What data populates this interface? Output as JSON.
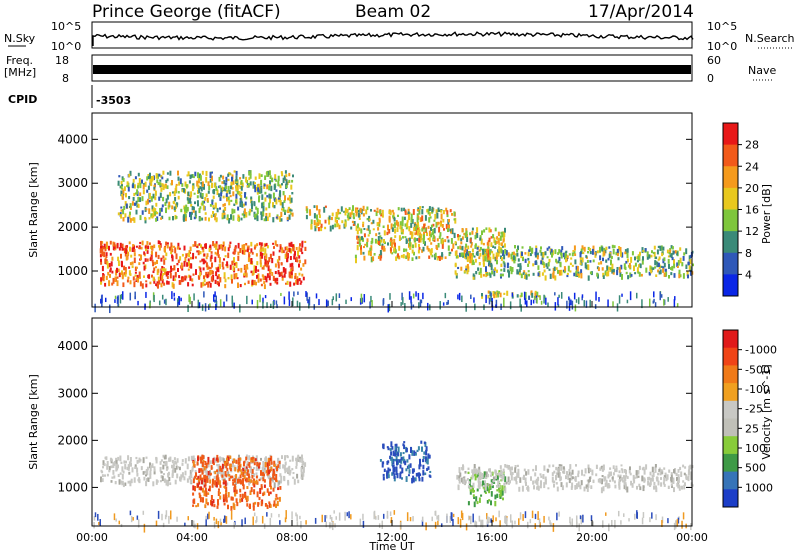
{
  "header": {
    "station": "Prince George (fitACF)",
    "beam": "Beam 02",
    "date": "17/Apr/2014"
  },
  "status": {
    "nsky_label": "N.Sky",
    "nsky_top": "10^5",
    "nsky_bottom": "10^0",
    "nsearch_label": "N.Search",
    "nsearch_top": "10^5",
    "nsearch_bottom": "10^0",
    "freq_label_1": "Freq.",
    "freq_label_2": "[MHz]",
    "freq_top": "18",
    "freq_bottom": "8",
    "nave_label": "Nave",
    "nave_top": "60",
    "nave_bottom": "0",
    "cpid_label": "CPID",
    "cpid_value": "-3503"
  },
  "chart_data": [
    {
      "type": "heatmap",
      "ylabel": "Slant Range [km]",
      "yticks": [
        "1000",
        "2000",
        "3000",
        "4000"
      ],
      "ylim": [
        180,
        4600
      ],
      "colorbar_label": "Power [dB]",
      "colorbar_ticks": [
        "4",
        "8",
        "12",
        "16",
        "20",
        "24",
        "28"
      ],
      "colorbar_colors": [
        "#0a26e6",
        "#2f58b8",
        "#3a8a78",
        "#7ec63c",
        "#e8c81e",
        "#f59a1c",
        "#f25a1a",
        "#e81818"
      ],
      "bands": [
        {
          "t": [
            0.3,
            8.5
          ],
          "r": [
            700,
            1700
          ],
          "level": 6
        },
        {
          "t": [
            8.5,
            14.5
          ],
          "r": [
            2000,
            2500
          ],
          "level": 4
        },
        {
          "t": [
            14.5,
            24
          ],
          "r": [
            900,
            1600
          ],
          "level": 3
        },
        {
          "t": [
            1,
            8
          ],
          "r": [
            2200,
            3300
          ],
          "level": 3
        },
        {
          "t": [
            10.5,
            16.5
          ],
          "r": [
            1300,
            2000
          ],
          "level": 4
        },
        {
          "t": [
            15.5,
            18.2
          ],
          "r": [
            420,
            560
          ],
          "level": 3
        }
      ]
    },
    {
      "type": "heatmap",
      "ylabel": "Slant Range [km]",
      "yticks": [
        "1000",
        "2000",
        "3000",
        "4000"
      ],
      "ylim": [
        180,
        4600
      ],
      "xlabel": "Time UT",
      "xticks": [
        "00:00",
        "04:00",
        "08:00",
        "12:00",
        "16:00",
        "20:00",
        "00:00"
      ],
      "xlim": [
        0,
        24
      ],
      "colorbar_label": "Velocity [m s^-1]",
      "colorbar_ticks": [
        "1000",
        "500",
        "100",
        "25",
        "-25",
        "-100",
        "-500",
        "-1000"
      ],
      "colorbar_colors": [
        "#1c3ec8",
        "#3674b8",
        "#3e9a46",
        "#88cc3a",
        "#c0c0b8",
        "#c8c8c4",
        "#f0a020",
        "#f07a18",
        "#f04416",
        "#e01a1a"
      ],
      "bands": [
        {
          "t": [
            0.3,
            8.5
          ],
          "r": [
            1100,
            1700
          ],
          "v": "gray"
        },
        {
          "t": [
            4,
            7.5
          ],
          "r": [
            600,
            1700
          ],
          "v": "-500"
        },
        {
          "t": [
            11.5,
            13.5
          ],
          "r": [
            1200,
            2000
          ],
          "v": "1000"
        },
        {
          "t": [
            15,
            16.5
          ],
          "r": [
            700,
            1400
          ],
          "v": "100"
        },
        {
          "t": [
            14.5,
            24
          ],
          "r": [
            1000,
            1500
          ],
          "v": "gray"
        }
      ]
    }
  ]
}
